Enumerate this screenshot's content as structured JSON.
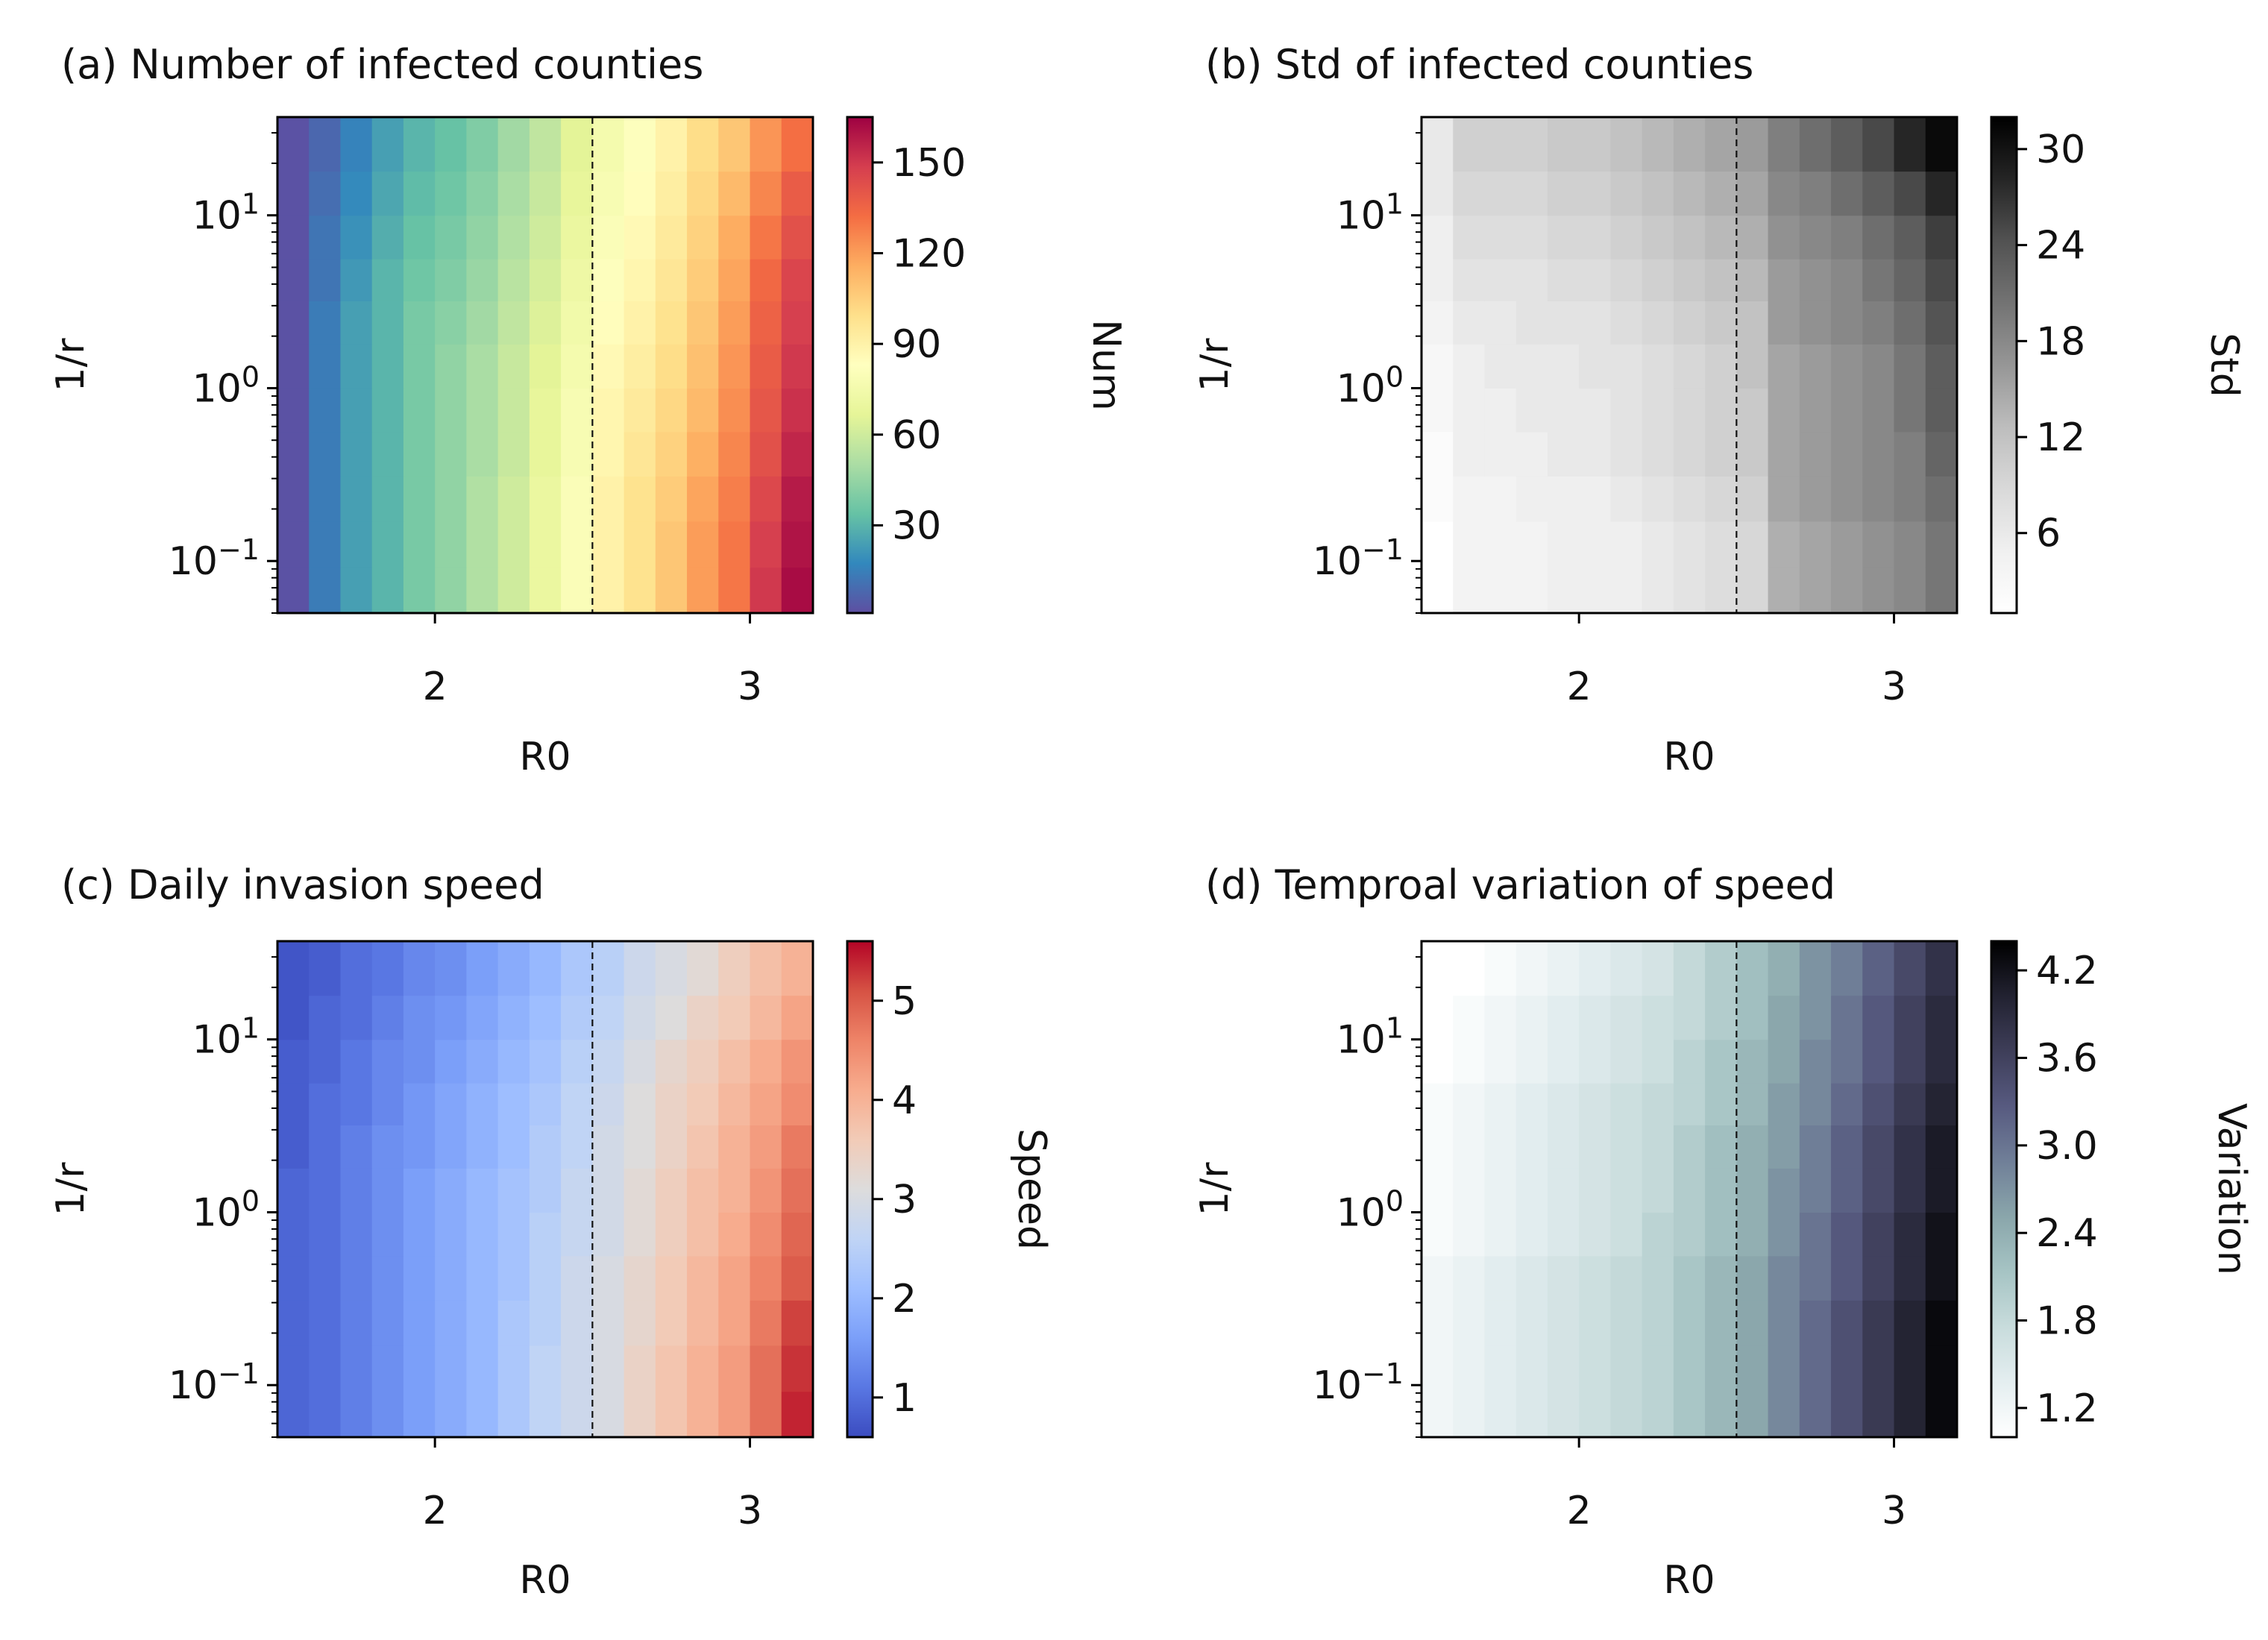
{
  "chart_data": [
    {
      "type": "heatmap",
      "title": "(a) Number of infected counties",
      "xlabel": "R0",
      "ylabel": "1/r",
      "colorbar_label": "Num",
      "colormap": "Spectral_r",
      "clim": [
        1,
        165
      ],
      "colorbar_ticks": [
        {
          "v": 30,
          "label": "30"
        },
        {
          "v": 60,
          "label": "60"
        },
        {
          "v": 90,
          "label": "90"
        },
        {
          "v": 120,
          "label": "120"
        },
        {
          "v": 150,
          "label": "150"
        }
      ],
      "x_range": [
        1.5,
        3.2
      ],
      "y_range": [
        0.05,
        37
      ],
      "y_scale": "log",
      "x_ticks": [
        {
          "v": 2,
          "label": "2"
        },
        {
          "v": 3,
          "label": "3"
        }
      ],
      "y_ticks": [
        {
          "v": 0.1,
          "base": "10",
          "exp": "−1"
        },
        {
          "v": 1,
          "base": "10",
          "exp": "0"
        },
        {
          "v": 10,
          "base": "10",
          "exp": "1"
        }
      ],
      "threshold_line": {
        "x": 2.5,
        "style": "dashed"
      },
      "grid": false,
      "x_bins": [
        1.5,
        1.6,
        1.7,
        1.8,
        1.9,
        2.0,
        2.1,
        2.2,
        2.3,
        2.4,
        2.5,
        2.6,
        2.7,
        2.8,
        2.9,
        3.0,
        3.1,
        3.2
      ],
      "y_bins": [
        0.05,
        0.092,
        0.17,
        0.31,
        0.56,
        1.0,
        1.8,
        3.2,
        5.6,
        10.0,
        18.0,
        37.0
      ],
      "z": [
        [
          2,
          14,
          24,
          30,
          38,
          44,
          52,
          60,
          70,
          80,
          90,
          98,
          108,
          120,
          130,
          150,
          162
        ],
        [
          2,
          14,
          24,
          30,
          38,
          44,
          52,
          60,
          70,
          80,
          90,
          98,
          108,
          120,
          130,
          148,
          160
        ],
        [
          2,
          14,
          24,
          30,
          38,
          44,
          52,
          60,
          70,
          80,
          90,
          98,
          106,
          118,
          128,
          145,
          158
        ],
        [
          2,
          14,
          24,
          30,
          38,
          44,
          50,
          58,
          68,
          78,
          88,
          96,
          104,
          115,
          126,
          142,
          155
        ],
        [
          2,
          14,
          24,
          30,
          38,
          44,
          50,
          58,
          68,
          78,
          88,
          94,
          102,
          112,
          124,
          140,
          152
        ],
        [
          2,
          14,
          24,
          30,
          38,
          44,
          50,
          58,
          66,
          76,
          86,
          92,
          100,
          110,
          122,
          138,
          150
        ],
        [
          2,
          14,
          24,
          30,
          38,
          42,
          48,
          56,
          64,
          74,
          84,
          90,
          98,
          108,
          120,
          136,
          148
        ],
        [
          2,
          12,
          22,
          30,
          36,
          40,
          46,
          54,
          62,
          72,
          82,
          88,
          96,
          106,
          118,
          134,
          146
        ],
        [
          2,
          12,
          20,
          28,
          34,
          38,
          44,
          52,
          60,
          70,
          80,
          86,
          94,
          104,
          116,
          130,
          142
        ],
        [
          2,
          10,
          18,
          26,
          32,
          36,
          42,
          50,
          58,
          68,
          78,
          84,
          92,
          102,
          112,
          126,
          138
        ],
        [
          2,
          8,
          16,
          24,
          30,
          34,
          40,
          48,
          56,
          66,
          76,
          82,
          90,
          100,
          108,
          122,
          132
        ]
      ]
    },
    {
      "type": "heatmap",
      "title": "(b) Std of infected counties",
      "xlabel": "R0",
      "ylabel": "1/r",
      "colorbar_label": "Std",
      "colormap": "Greys",
      "clim": [
        1,
        32
      ],
      "colorbar_ticks": [
        {
          "v": 6,
          "label": "6"
        },
        {
          "v": 12,
          "label": "12"
        },
        {
          "v": 18,
          "label": "18"
        },
        {
          "v": 24,
          "label": "24"
        },
        {
          "v": 30,
          "label": "30"
        }
      ],
      "x_range": [
        1.5,
        3.2
      ],
      "y_range": [
        0.05,
        37
      ],
      "y_scale": "log",
      "x_ticks": [
        {
          "v": 2,
          "label": "2"
        },
        {
          "v": 3,
          "label": "3"
        }
      ],
      "y_ticks": [
        {
          "v": 0.1,
          "base": "10",
          "exp": "−1"
        },
        {
          "v": 1,
          "base": "10",
          "exp": "0"
        },
        {
          "v": 10,
          "base": "10",
          "exp": "1"
        }
      ],
      "threshold_line": {
        "x": 2.5,
        "style": "dashed"
      },
      "grid": false,
      "x_bins": [
        1.5,
        1.6,
        1.7,
        1.8,
        1.9,
        2.0,
        2.1,
        2.2,
        2.3,
        2.4,
        2.5,
        2.6,
        2.7,
        2.8,
        2.9,
        3.0,
        3.1,
        3.2
      ],
      "y_bins": [
        0.05,
        0.092,
        0.17,
        0.31,
        0.56,
        1.0,
        1.8,
        3.2,
        5.6,
        10.0,
        18.0,
        37.0
      ],
      "z": [
        [
          1,
          4,
          4,
          4,
          5,
          5,
          5,
          6,
          7,
          8,
          9,
          14,
          15,
          16,
          17,
          18,
          20
        ],
        [
          1,
          4,
          4,
          4,
          5,
          5,
          5,
          6,
          7,
          8,
          9,
          14,
          15,
          16,
          17,
          18,
          20
        ],
        [
          2,
          4,
          4,
          5,
          5,
          5,
          6,
          7,
          8,
          9,
          10,
          15,
          16,
          17,
          18,
          19,
          21
        ],
        [
          2,
          5,
          5,
          5,
          6,
          6,
          7,
          8,
          9,
          10,
          11,
          15,
          16,
          17,
          18,
          19,
          22
        ],
        [
          3,
          5,
          5,
          6,
          6,
          6,
          7,
          8,
          9,
          10,
          11,
          15,
          16,
          17,
          18,
          20,
          23
        ],
        [
          3,
          5,
          6,
          6,
          6,
          7,
          7,
          8,
          9,
          10,
          12,
          15,
          16,
          17,
          18,
          20,
          23
        ],
        [
          4,
          6,
          6,
          7,
          7,
          7,
          8,
          9,
          10,
          11,
          12,
          16,
          17,
          18,
          19,
          21,
          24
        ],
        [
          5,
          7,
          7,
          7,
          8,
          8,
          9,
          10,
          11,
          12,
          13,
          16,
          17,
          18,
          20,
          22,
          25
        ],
        [
          5,
          8,
          8,
          8,
          9,
          9,
          10,
          11,
          12,
          13,
          14,
          17,
          18,
          19,
          21,
          23,
          26
        ],
        [
          6,
          9,
          9,
          9,
          10,
          10,
          11,
          12,
          13,
          14,
          15,
          18,
          19,
          21,
          23,
          25,
          28
        ],
        [
          6,
          10,
          10,
          10,
          11,
          11,
          12,
          13,
          14,
          15,
          16,
          19,
          21,
          23,
          25,
          28,
          31
        ]
      ]
    },
    {
      "type": "heatmap",
      "title": "(c) Daily invasion speed",
      "xlabel": "R0",
      "ylabel": "1/r",
      "colorbar_label": "Speed",
      "colormap": "coolwarm",
      "clim": [
        0.6,
        5.6
      ],
      "colorbar_ticks": [
        {
          "v": 1,
          "label": "1"
        },
        {
          "v": 2,
          "label": "2"
        },
        {
          "v": 3,
          "label": "3"
        },
        {
          "v": 4,
          "label": "4"
        },
        {
          "v": 5,
          "label": "5"
        }
      ],
      "x_range": [
        1.5,
        3.2
      ],
      "y_range": [
        0.05,
        37
      ],
      "y_scale": "log",
      "x_ticks": [
        {
          "v": 2,
          "label": "2"
        },
        {
          "v": 3,
          "label": "3"
        }
      ],
      "y_ticks": [
        {
          "v": 0.1,
          "base": "10",
          "exp": "−1"
        },
        {
          "v": 1,
          "base": "10",
          "exp": "0"
        },
        {
          "v": 10,
          "base": "10",
          "exp": "1"
        }
      ],
      "threshold_line": {
        "x": 2.5,
        "style": "dashed"
      },
      "grid": false,
      "x_bins": [
        1.5,
        1.6,
        1.7,
        1.8,
        1.9,
        2.0,
        2.1,
        2.2,
        2.3,
        2.4,
        2.5,
        2.6,
        2.7,
        2.8,
        2.9,
        3.0,
        3.1,
        3.2
      ],
      "y_bins": [
        0.05,
        0.092,
        0.17,
        0.31,
        0.56,
        1.0,
        1.8,
        3.2,
        5.6,
        10.0,
        18.0,
        37.0
      ],
      "z": [
        [
          0.9,
          1.0,
          1.2,
          1.4,
          1.6,
          1.8,
          2.0,
          2.3,
          2.6,
          2.8,
          3.0,
          3.4,
          3.7,
          4.0,
          4.3,
          4.8,
          5.4
        ],
        [
          0.9,
          1.0,
          1.2,
          1.4,
          1.6,
          1.8,
          2.0,
          2.3,
          2.6,
          2.8,
          3.0,
          3.4,
          3.7,
          4.0,
          4.3,
          4.8,
          5.3
        ],
        [
          0.9,
          1.0,
          1.2,
          1.4,
          1.6,
          1.8,
          2.0,
          2.3,
          2.5,
          2.8,
          3.0,
          3.3,
          3.6,
          3.9,
          4.2,
          4.7,
          5.2
        ],
        [
          0.9,
          1.0,
          1.2,
          1.4,
          1.6,
          1.8,
          2.0,
          2.2,
          2.5,
          2.8,
          3.0,
          3.3,
          3.6,
          3.9,
          4.2,
          4.6,
          5.0
        ],
        [
          0.9,
          1.0,
          1.2,
          1.4,
          1.6,
          1.8,
          2.0,
          2.2,
          2.5,
          2.7,
          2.9,
          3.2,
          3.5,
          3.8,
          4.1,
          4.5,
          4.9
        ],
        [
          0.9,
          1.0,
          1.2,
          1.4,
          1.6,
          1.8,
          2.0,
          2.2,
          2.4,
          2.7,
          2.9,
          3.2,
          3.5,
          3.8,
          4.0,
          4.4,
          4.8
        ],
        [
          0.8,
          1.0,
          1.2,
          1.4,
          1.5,
          1.7,
          1.9,
          2.1,
          2.4,
          2.6,
          2.9,
          3.1,
          3.4,
          3.7,
          4.0,
          4.3,
          4.7
        ],
        [
          0.8,
          1.0,
          1.1,
          1.3,
          1.5,
          1.7,
          1.9,
          2.1,
          2.3,
          2.6,
          2.8,
          3.1,
          3.4,
          3.6,
          3.9,
          4.2,
          4.5
        ],
        [
          0.8,
          0.9,
          1.1,
          1.3,
          1.4,
          1.6,
          1.8,
          2.0,
          2.2,
          2.5,
          2.7,
          3.0,
          3.3,
          3.5,
          3.8,
          4.1,
          4.4
        ],
        [
          0.7,
          0.9,
          1.0,
          1.2,
          1.4,
          1.5,
          1.7,
          1.9,
          2.1,
          2.4,
          2.6,
          2.9,
          3.1,
          3.4,
          3.6,
          3.9,
          4.2
        ],
        [
          0.7,
          0.8,
          1.0,
          1.1,
          1.3,
          1.4,
          1.6,
          1.8,
          2.0,
          2.3,
          2.5,
          2.8,
          3.0,
          3.2,
          3.5,
          3.8,
          4.0
        ]
      ]
    },
    {
      "type": "heatmap",
      "title": "(d) Temproal variation of speed",
      "xlabel": "R0",
      "ylabel": "1/r",
      "colorbar_label": "Variation",
      "colormap": "bone_r",
      "clim": [
        1.0,
        4.4
      ],
      "colorbar_ticks": [
        {
          "v": 1.2,
          "label": "1.2"
        },
        {
          "v": 1.8,
          "label": "1.8"
        },
        {
          "v": 2.4,
          "label": "2.4"
        },
        {
          "v": 3.0,
          "label": "3.0"
        },
        {
          "v": 3.6,
          "label": "3.6"
        },
        {
          "v": 4.2,
          "label": "4.2"
        }
      ],
      "x_range": [
        1.5,
        3.2
      ],
      "y_range": [
        0.05,
        37
      ],
      "y_scale": "log",
      "x_ticks": [
        {
          "v": 2,
          "label": "2"
        },
        {
          "v": 3,
          "label": "3"
        }
      ],
      "y_ticks": [
        {
          "v": 0.1,
          "base": "10",
          "exp": "−1"
        },
        {
          "v": 1,
          "base": "10",
          "exp": "0"
        },
        {
          "v": 10,
          "base": "10",
          "exp": "1"
        }
      ],
      "threshold_line": {
        "x": 2.5,
        "style": "dashed"
      },
      "grid": false,
      "x_bins": [
        1.5,
        1.6,
        1.7,
        1.8,
        1.9,
        2.0,
        2.1,
        2.2,
        2.3,
        2.4,
        2.5,
        2.6,
        2.7,
        2.8,
        2.9,
        3.0,
        3.1,
        3.2
      ],
      "y_bins": [
        0.05,
        0.092,
        0.17,
        0.31,
        0.56,
        1.0,
        1.8,
        3.2,
        5.6,
        10.0,
        18.0,
        37.0
      ],
      "z": [
        [
          1.2,
          1.3,
          1.4,
          1.5,
          1.6,
          1.7,
          1.8,
          1.9,
          2.1,
          2.3,
          2.5,
          2.8,
          3.1,
          3.4,
          3.7,
          4.0,
          4.3
        ],
        [
          1.2,
          1.3,
          1.4,
          1.5,
          1.6,
          1.7,
          1.8,
          1.9,
          2.1,
          2.3,
          2.5,
          2.8,
          3.1,
          3.4,
          3.7,
          4.0,
          4.3
        ],
        [
          1.2,
          1.3,
          1.4,
          1.5,
          1.6,
          1.7,
          1.8,
          1.9,
          2.1,
          2.3,
          2.5,
          2.8,
          3.1,
          3.4,
          3.7,
          4.0,
          4.3
        ],
        [
          1.2,
          1.3,
          1.4,
          1.5,
          1.6,
          1.7,
          1.8,
          1.9,
          2.1,
          2.3,
          2.5,
          2.8,
          3.0,
          3.3,
          3.6,
          3.9,
          4.2
        ],
        [
          1.1,
          1.2,
          1.3,
          1.4,
          1.5,
          1.6,
          1.7,
          1.9,
          2.0,
          2.2,
          2.4,
          2.7,
          3.0,
          3.3,
          3.6,
          3.9,
          4.2
        ],
        [
          1.1,
          1.2,
          1.3,
          1.4,
          1.5,
          1.6,
          1.7,
          1.8,
          2.0,
          2.2,
          2.4,
          2.7,
          2.9,
          3.2,
          3.5,
          3.8,
          4.1
        ],
        [
          1.1,
          1.2,
          1.3,
          1.4,
          1.5,
          1.6,
          1.7,
          1.8,
          2.0,
          2.2,
          2.4,
          2.6,
          2.9,
          3.2,
          3.5,
          3.8,
          4.1
        ],
        [
          1.1,
          1.2,
          1.3,
          1.4,
          1.5,
          1.6,
          1.7,
          1.8,
          1.9,
          2.1,
          2.3,
          2.6,
          2.8,
          3.1,
          3.4,
          3.7,
          4.0
        ],
        [
          1.0,
          1.1,
          1.2,
          1.3,
          1.4,
          1.5,
          1.6,
          1.7,
          1.9,
          2.1,
          2.3,
          2.5,
          2.8,
          3.0,
          3.3,
          3.6,
          3.9
        ],
        [
          1.0,
          1.1,
          1.2,
          1.3,
          1.4,
          1.5,
          1.6,
          1.7,
          1.8,
          2.0,
          2.2,
          2.5,
          2.7,
          3.0,
          3.3,
          3.6,
          3.9
        ],
        [
          1.0,
          1.0,
          1.1,
          1.2,
          1.3,
          1.4,
          1.5,
          1.6,
          1.8,
          2.0,
          2.2,
          2.4,
          2.7,
          2.9,
          3.2,
          3.5,
          3.8
        ]
      ]
    }
  ]
}
